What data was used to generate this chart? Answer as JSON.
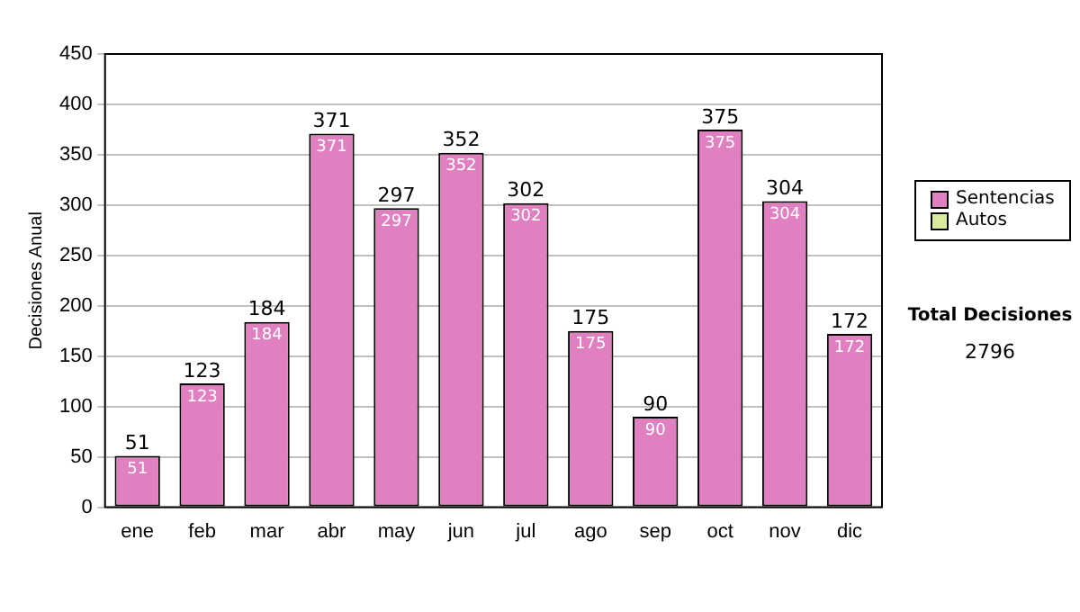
{
  "chart_data": {
    "type": "bar",
    "ylabel": "Decisiones Anual",
    "categories": [
      "ene",
      "feb",
      "mar",
      "abr",
      "may",
      "jun",
      "jul",
      "ago",
      "sep",
      "oct",
      "nov",
      "dic"
    ],
    "series": [
      {
        "name": "Sentencias",
        "color": "#e080c0",
        "values": [
          51,
          123,
          184,
          371,
          297,
          352,
          302,
          175,
          90,
          375,
          304,
          172
        ],
        "value_labels": [
          "51",
          "123",
          "184",
          "371",
          "297",
          "352",
          "302",
          "175",
          "90",
          "375",
          "304",
          "172"
        ]
      },
      {
        "name": "Autos",
        "color": "#d8ec9c",
        "values": [
          0,
          0,
          0,
          0,
          0,
          0,
          0,
          0,
          0,
          0,
          0,
          0
        ],
        "value_labels": [
          null,
          null,
          null,
          null,
          null,
          null,
          null,
          null,
          null,
          null,
          null,
          null
        ]
      }
    ],
    "stacked": true,
    "totals": [
      "51",
      "123",
      "184",
      "371",
      "297",
      "352",
      "302",
      "175",
      "90",
      "375",
      "304",
      "172"
    ],
    "ylim": [
      0,
      450
    ],
    "yticks": [
      0,
      50,
      100,
      150,
      200,
      250,
      300,
      350,
      400,
      450
    ],
    "grid": "y",
    "legend": "right",
    "annotations": [
      "Total Decisiones",
      "2796"
    ]
  }
}
